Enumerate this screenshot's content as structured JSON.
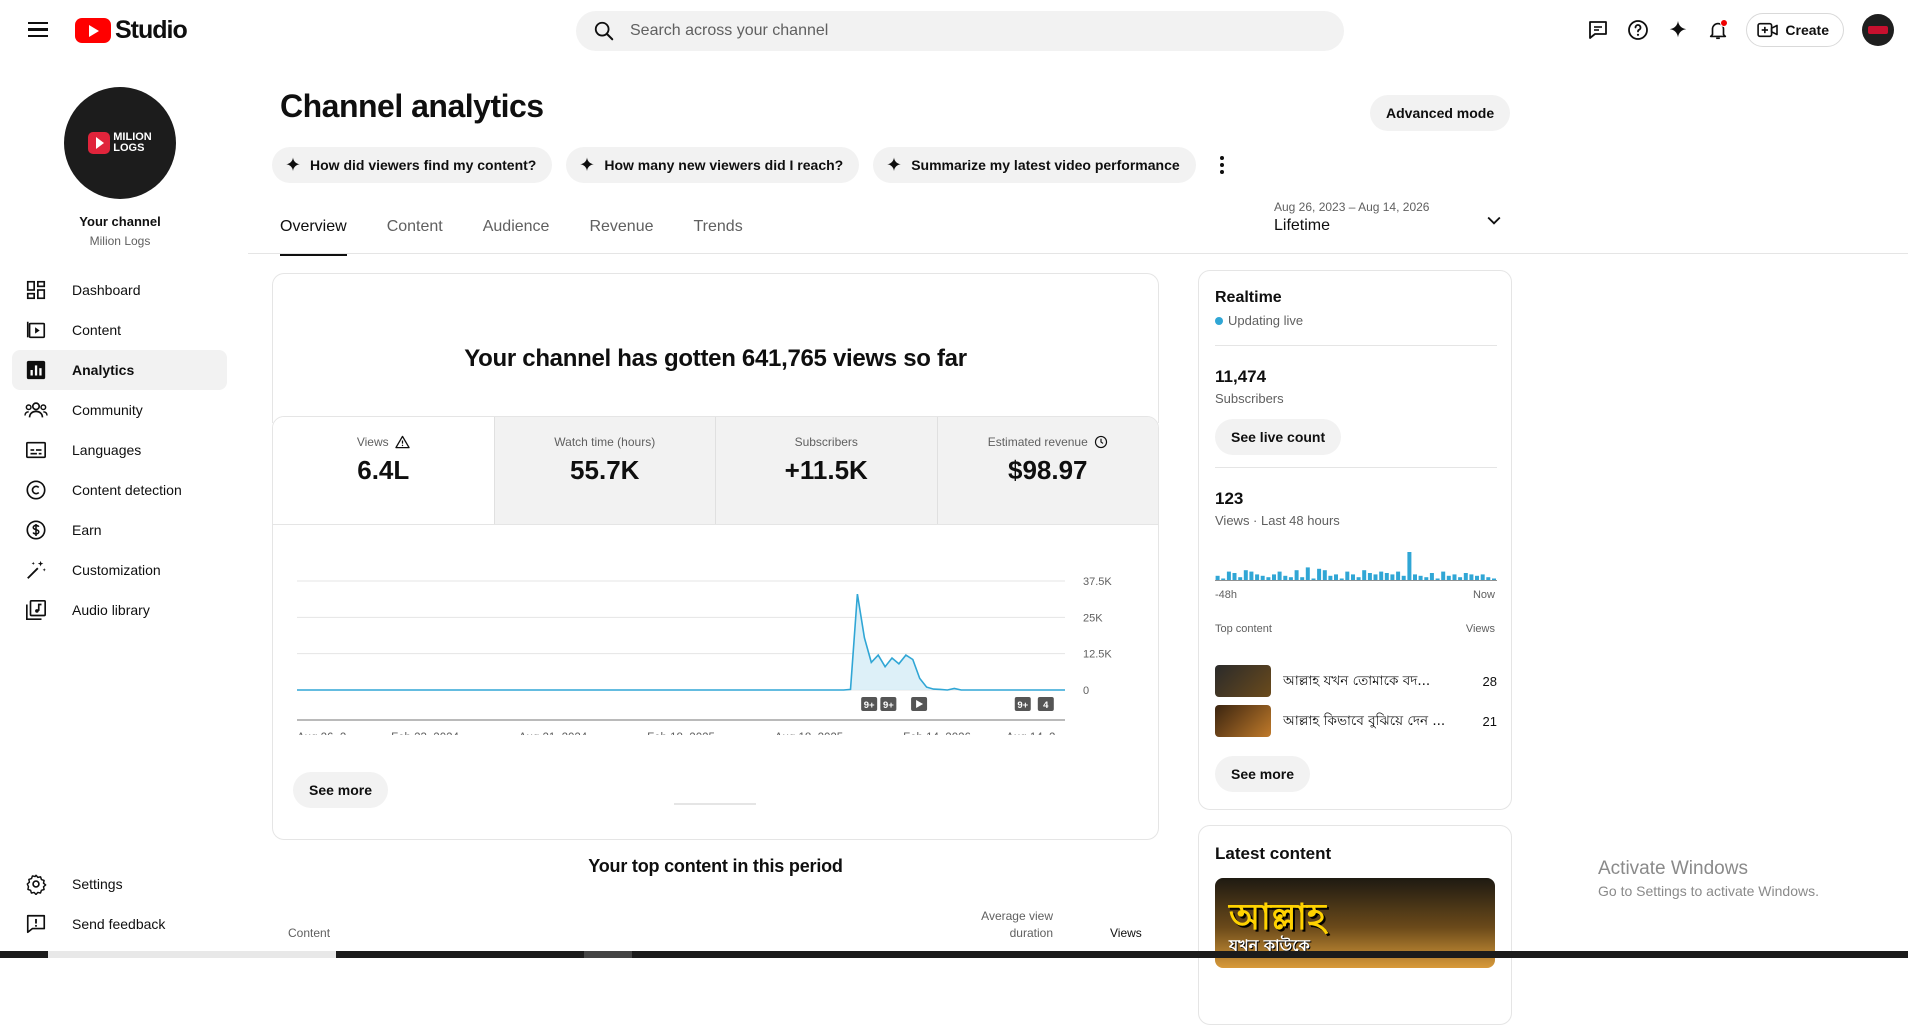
{
  "app": {
    "logo_text": "Studio"
  },
  "search": {
    "placeholder": "Search across your channel"
  },
  "topbar": {
    "create_label": "Create"
  },
  "channel": {
    "your_channel_label": "Your channel",
    "name": "Milion Logs",
    "logo_line1": "MILION",
    "logo_line2": "LOGS"
  },
  "sidebar": {
    "items": [
      {
        "label": "Dashboard",
        "icon": "dashboard-icon"
      },
      {
        "label": "Content",
        "icon": "content-icon"
      },
      {
        "label": "Analytics",
        "icon": "analytics-icon"
      },
      {
        "label": "Community",
        "icon": "community-icon"
      },
      {
        "label": "Languages",
        "icon": "subtitles-icon"
      },
      {
        "label": "Content detection",
        "icon": "copyright-icon"
      },
      {
        "label": "Earn",
        "icon": "dollar-icon"
      },
      {
        "label": "Customization",
        "icon": "magic-wand-icon"
      },
      {
        "label": "Audio library",
        "icon": "audio-library-icon"
      }
    ],
    "bottom": [
      {
        "label": "Settings",
        "icon": "gear-icon"
      },
      {
        "label": "Send feedback",
        "icon": "feedback-icon"
      }
    ]
  },
  "page": {
    "title": "Channel analytics",
    "advanced_mode": "Advanced mode"
  },
  "chips": [
    {
      "label": "How did viewers find my content?"
    },
    {
      "label": "How many new viewers did I reach?"
    },
    {
      "label": "Summarize my latest video performance"
    }
  ],
  "tabs": [
    "Overview",
    "Content",
    "Audience",
    "Revenue",
    "Trends"
  ],
  "date_range": {
    "range": "Aug 26, 2023 – Aug 14, 2026",
    "label": "Lifetime"
  },
  "overview": {
    "headline": "Your channel has gotten 641,765 views so far",
    "metrics": [
      {
        "label": "Views",
        "value": "6.4L"
      },
      {
        "label": "Watch time (hours)",
        "value": "55.7K"
      },
      {
        "label": "Subscribers",
        "value": "+11.5K"
      },
      {
        "label": "Estimated revenue",
        "value": "$98.97"
      }
    ],
    "see_more": "See more"
  },
  "chart_data": {
    "type": "area",
    "x_ticks": [
      "Aug 26, 2...",
      "Feb 23, 2024",
      "Aug 21, 2024",
      "Feb 18, 2025",
      "Aug 18, 2025",
      "Feb 14, 2026",
      "Aug 14, 2..."
    ],
    "y_ticks": [
      "37.5K",
      "25K",
      "12.5K",
      "0"
    ],
    "ylim": [
      0,
      37500
    ],
    "series": [
      {
        "values": [
          0,
          0,
          0,
          0,
          0,
          0,
          0,
          0,
          0,
          0,
          0,
          0,
          0,
          0,
          0,
          0,
          0,
          0,
          0,
          0,
          0,
          0,
          0,
          0,
          0,
          0,
          0,
          0,
          0,
          0,
          0,
          0,
          0,
          0,
          0,
          0,
          0,
          0,
          0,
          0,
          0,
          0,
          0,
          0,
          0,
          0,
          0,
          0,
          0,
          0,
          0,
          0,
          0,
          0,
          0,
          0,
          0,
          0,
          0,
          0,
          0,
          0,
          0,
          0,
          0,
          0,
          0,
          0,
          0,
          0,
          0,
          0,
          0,
          0,
          0,
          0,
          0,
          0,
          0,
          0,
          200,
          33000,
          18000,
          9500,
          12000,
          8000,
          11000,
          9000,
          12000,
          10500,
          4000,
          1000,
          300,
          200,
          0,
          500,
          0,
          0,
          0,
          0,
          0,
          0,
          0,
          0,
          0,
          0,
          0,
          0,
          0,
          0,
          0,
          0
        ]
      }
    ],
    "grid": true,
    "markers": [
      "9+",
      "9+",
      "play",
      "9+",
      "4"
    ]
  },
  "realtime": {
    "title": "Realtime",
    "status": "Updating live",
    "subscribers_value": "11,474",
    "subscribers_label": "Subscribers",
    "see_live_count": "See live count",
    "views_value": "123",
    "views_label": "Views · Last 48 hours",
    "spark_start": "-48h",
    "spark_end": "Now",
    "spark_values": [
      0.15,
      0.05,
      0.3,
      0.25,
      0.1,
      0.35,
      0.3,
      0.2,
      0.15,
      0.1,
      0.2,
      0.3,
      0.15,
      0.1,
      0.35,
      0.1,
      0.45,
      0.05,
      0.4,
      0.35,
      0.15,
      0.2,
      0.05,
      0.3,
      0.2,
      0.1,
      0.35,
      0.25,
      0.2,
      0.3,
      0.25,
      0.2,
      0.3,
      0.15,
      1.0,
      0.2,
      0.15,
      0.1,
      0.25,
      0.05,
      0.3,
      0.15,
      0.2,
      0.1,
      0.25,
      0.2,
      0.15,
      0.2,
      0.1,
      0.05
    ],
    "top_content_label": "Top content",
    "views_col": "Views",
    "items": [
      {
        "title": "আল্লাহ যখন তোমাকে বদ...",
        "views": "28"
      },
      {
        "title": "আল্লাহ কিভাবে বুঝিয়ে দেন ...",
        "views": "21"
      }
    ],
    "see_more": "See more"
  },
  "latest": {
    "title": "Latest content",
    "thumb_line1": "আল্লাহ",
    "thumb_line2": "যখন কাউকে"
  },
  "top_content": {
    "title": "Your top content in this period",
    "col_content": "Content",
    "col_avd": "Average view duration",
    "col_views": "Views"
  },
  "watermark": {
    "line1": "Activate Windows",
    "line2": "Go to Settings to activate Windows."
  },
  "colors": {
    "accent": "#30a6d5",
    "brand": "#ff0000"
  }
}
